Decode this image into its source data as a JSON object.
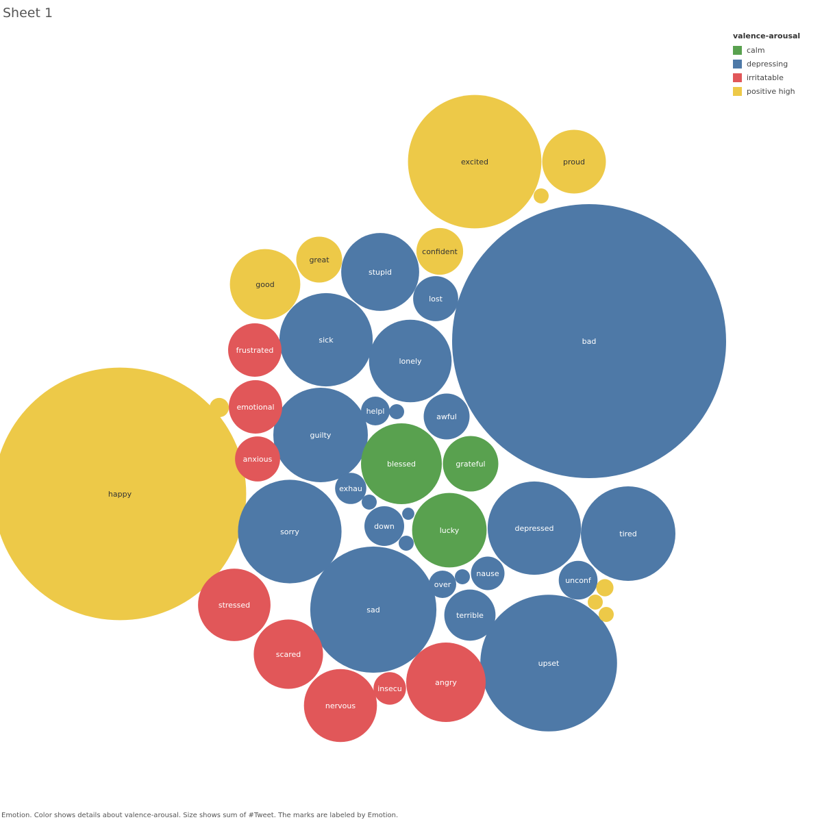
{
  "sheet": {
    "title": "Sheet 1"
  },
  "legend": {
    "title": "valence-arousal",
    "items": [
      {
        "label": "calm",
        "color": "#59a14f"
      },
      {
        "label": "depressing",
        "color": "#4e79a7"
      },
      {
        "label": "irritatable",
        "color": "#e15759"
      },
      {
        "label": "positive high",
        "color": "#edc948"
      }
    ]
  },
  "caption": "Emotion.  Color shows details about valence-arousal.  Size shows sum of #Tweet.  The marks are labeled by Emotion.",
  "chart_data": {
    "type": "bubble",
    "size_measure": "#Tweet",
    "color_measure": "valence-arousal",
    "label_measure": "Emotion",
    "category_colors": {
      "calm": "#59a14f",
      "depressing": "#4e79a7",
      "irritatable": "#e15759",
      "positive high": "#edc948"
    },
    "bubbles": [
      {
        "label": "bad",
        "category": "depressing",
        "size": 1000
      },
      {
        "label": "happy",
        "category": "positive high",
        "size": 850
      },
      {
        "label": "excited",
        "category": "positive high",
        "size": 237
      },
      {
        "label": "upset",
        "category": "depressing",
        "size": 249
      },
      {
        "label": "sad",
        "category": "depressing",
        "size": 212
      },
      {
        "label": "sorry",
        "category": "depressing",
        "size": 143
      },
      {
        "label": "depressed",
        "category": "depressing",
        "size": 116
      },
      {
        "label": "tired",
        "category": "depressing",
        "size": 119
      },
      {
        "label": "guilty",
        "category": "depressing",
        "size": 119
      },
      {
        "label": "sick",
        "category": "depressing",
        "size": 116
      },
      {
        "label": "lonely",
        "category": "depressing",
        "size": 91
      },
      {
        "label": "stupid",
        "category": "depressing",
        "size": 81
      },
      {
        "label": "blessed",
        "category": "calm",
        "size": 87
      },
      {
        "label": "lucky",
        "category": "calm",
        "size": 74
      },
      {
        "label": "grateful",
        "category": "calm",
        "size": 41
      },
      {
        "label": "angry",
        "category": "irritatable",
        "size": 84
      },
      {
        "label": "nervous",
        "category": "irritatable",
        "size": 71
      },
      {
        "label": "stressed",
        "category": "irritatable",
        "size": 70
      },
      {
        "label": "scared",
        "category": "irritatable",
        "size": 64
      },
      {
        "label": "good",
        "category": "positive high",
        "size": 66
      },
      {
        "label": "proud",
        "category": "positive high",
        "size": 54
      },
      {
        "label": "terrible",
        "category": "depressing",
        "size": 35
      },
      {
        "label": "emotional",
        "category": "irritatable",
        "size": 38
      },
      {
        "label": "frustrated",
        "category": "irritatable",
        "size": 38
      },
      {
        "label": "anxious",
        "category": "irritatable",
        "size": 27
      },
      {
        "label": "great",
        "category": "positive high",
        "size": 28
      },
      {
        "label": "confident",
        "category": "positive high",
        "size": 29
      },
      {
        "label": "awful",
        "category": "depressing",
        "size": 28
      },
      {
        "label": "lost",
        "category": "depressing",
        "size": 27
      },
      {
        "label": "down",
        "category": "depressing",
        "size": 21
      },
      {
        "label": "unconf",
        "category": "depressing",
        "size": 20
      },
      {
        "label": "nause",
        "category": "depressing",
        "size": 15
      },
      {
        "label": "insecu",
        "category": "irritatable",
        "size": 14
      },
      {
        "label": "exhau",
        "category": "depressing",
        "size": 13
      },
      {
        "label": "helpl",
        "category": "depressing",
        "size": 11
      },
      {
        "label": "over",
        "category": "depressing",
        "size": 10
      },
      {
        "label": "",
        "category": "positive high",
        "size": 5
      },
      {
        "label": "",
        "category": "positive high",
        "size": 3
      },
      {
        "label": "",
        "category": "positive high",
        "size": 4
      },
      {
        "label": "",
        "category": "positive high",
        "size": 3
      },
      {
        "label": "",
        "category": "positive high",
        "size": 3
      },
      {
        "label": "",
        "category": "depressing",
        "size": 3
      },
      {
        "label": "",
        "category": "depressing",
        "size": 3
      },
      {
        "label": "",
        "category": "depressing",
        "size": 2
      },
      {
        "label": "",
        "category": "depressing",
        "size": 3
      },
      {
        "label": "",
        "category": "depressing",
        "size": 3
      }
    ]
  }
}
